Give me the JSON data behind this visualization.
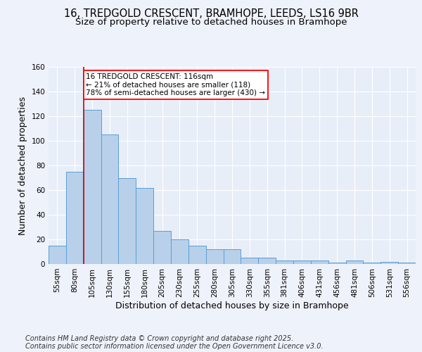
{
  "title_line1": "16, TREDGOLD CRESCENT, BRAMHOPE, LEEDS, LS16 9BR",
  "title_line2": "Size of property relative to detached houses in Bramhope",
  "xlabel": "Distribution of detached houses by size in Bramhope",
  "ylabel": "Number of detached properties",
  "categories": [
    "55sqm",
    "80sqm",
    "105sqm",
    "130sqm",
    "155sqm",
    "180sqm",
    "205sqm",
    "230sqm",
    "255sqm",
    "280sqm",
    "305sqm",
    "330sqm",
    "355sqm",
    "381sqm",
    "406sqm",
    "431sqm",
    "456sqm",
    "481sqm",
    "506sqm",
    "531sqm",
    "556sqm"
  ],
  "values": [
    15,
    75,
    125,
    105,
    70,
    62,
    27,
    20,
    15,
    12,
    12,
    5,
    5,
    3,
    3,
    3,
    1,
    3,
    1,
    2,
    1
  ],
  "bar_color": "#b8d0ea",
  "bar_edge_color": "#5a9fd4",
  "red_line_index": 1.5,
  "annotation_text": "16 TREDGOLD CRESCENT: 116sqm\n← 21% of detached houses are smaller (118)\n78% of semi-detached houses are larger (430) →",
  "annotation_box_color": "white",
  "annotation_box_edge_color": "red",
  "red_line_color": "#cc0000",
  "ylim": [
    0,
    160
  ],
  "yticks": [
    0,
    20,
    40,
    60,
    80,
    100,
    120,
    140,
    160
  ],
  "footer_line1": "Contains HM Land Registry data © Crown copyright and database right 2025.",
  "footer_line2": "Contains public sector information licensed under the Open Government Licence v3.0.",
  "background_color": "#eef2fa",
  "plot_bg_color": "#e8eef8",
  "grid_color": "white",
  "title_fontsize": 10.5,
  "subtitle_fontsize": 9.5,
  "axis_label_fontsize": 9,
  "tick_fontsize": 7.5,
  "annotation_fontsize": 7.5,
  "footer_fontsize": 7
}
